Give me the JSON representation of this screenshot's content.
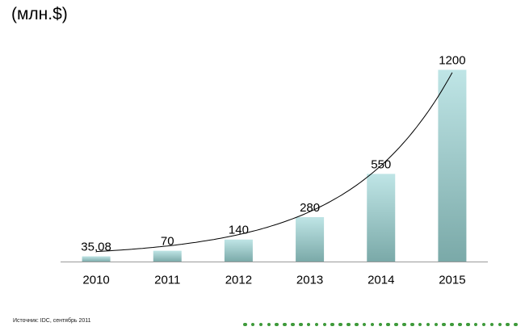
{
  "unit_label": "(млн.$)",
  "source": "Источник: IDC, сентябрь 2011",
  "colors": {
    "bar_top": "#bfe5e6",
    "bar_bottom": "#7aa9a8",
    "trend_line": "#000000",
    "axis": "#9a9a9a",
    "dots": "#3e9a3a"
  },
  "chart_data": {
    "type": "bar",
    "categories": [
      "2010",
      "2011",
      "2012",
      "2013",
      "2014",
      "2015"
    ],
    "values": [
      35.08,
      70,
      140,
      280,
      550,
      1200
    ],
    "data_labels": [
      "35,08",
      "70",
      "140",
      "280",
      "550",
      "1200"
    ],
    "title": "",
    "xlabel": "",
    "ylabel": "(млн.$)",
    "ylim": [
      0,
      1300
    ],
    "grid": false,
    "legend": "none",
    "trendline": "exponential"
  }
}
